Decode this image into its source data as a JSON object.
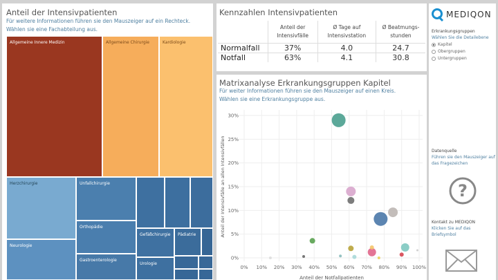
{
  "treemap": {
    "title": "Anteil der Intensivpatienten",
    "subtitle1": "Für weitere Informationen führen sie den Mauszeiger auf ein Rechteck.",
    "subtitle2": "Wählen sie eine Fachabteilung aus.",
    "cells": [
      "Allgemeine Innere Medizin",
      "Allgemeine Chirurgie",
      "Kardiologie",
      "Herzchirurgie",
      "Neurologie",
      "Unfallchirurgie",
      "Orthopädie",
      "Gastroenterologie",
      "Gefäßchirurgie",
      "Pädiatrie",
      "Urologie"
    ]
  },
  "kpi": {
    "title": "Kennzahlen Intensivpatienten",
    "headers": [
      "Anteil der Intensivfälle",
      "Ø Tage auf Intensivstation",
      "Ø Beatmungs-stunden"
    ],
    "rows": [
      {
        "label": "Normalfall",
        "values": [
          "37%",
          "4.0",
          "24.7"
        ]
      },
      {
        "label": "Notfall",
        "values": [
          "63%",
          "4.1",
          "30.8"
        ]
      }
    ]
  },
  "matrix": {
    "title": "Matrixanalyse Erkrankungsgruppen Kapitel",
    "subtitle1": "Für weiter Informationen führen sie den Mauszeiger auf einen Kreis.",
    "subtitle2": "Wählen sie eine Erkrankungsgruppe aus."
  },
  "chart_data": {
    "type": "scatter",
    "xlabel": "Anteil der Notfallpatienten",
    "ylabel": "Anteil der Intensivfälle an allen Intensivfällen",
    "xlim": [
      0,
      100
    ],
    "ylim": [
      0,
      30
    ],
    "grid": true,
    "xticks": [
      "0%",
      "10%",
      "20%",
      "30%",
      "40%",
      "50%",
      "60%",
      "70%",
      "80%",
      "90%",
      "100%"
    ],
    "yticks": [
      "0%",
      "5%",
      "10%",
      "15%",
      "20%",
      "25%",
      "30%"
    ],
    "points": [
      {
        "x": 54,
        "y": 29,
        "size": 10,
        "color": "#4a9e8e"
      },
      {
        "x": 61,
        "y": 14,
        "size": 7,
        "color": "#d8a6cc"
      },
      {
        "x": 61,
        "y": 12.1,
        "size": 5,
        "color": "#6f6f6f"
      },
      {
        "x": 78,
        "y": 8.2,
        "size": 10,
        "color": "#4a78a8"
      },
      {
        "x": 85,
        "y": 9.6,
        "size": 7,
        "color": "#bdb6b2"
      },
      {
        "x": 39,
        "y": 3.6,
        "size": 4,
        "color": "#59a14f"
      },
      {
        "x": 92,
        "y": 2.2,
        "size": 6,
        "color": "#7ec8c0"
      },
      {
        "x": 61,
        "y": 2,
        "size": 4,
        "color": "#b8a33a"
      },
      {
        "x": 73,
        "y": 1.2,
        "size": 6,
        "color": "#e0668a"
      },
      {
        "x": 73,
        "y": 2.2,
        "size": 3,
        "color": "#f4c56a"
      },
      {
        "x": 90,
        "y": 0.7,
        "size": 3,
        "color": "#d64550"
      },
      {
        "x": 34,
        "y": 0.3,
        "size": 2,
        "color": "#666"
      },
      {
        "x": 55,
        "y": 0.4,
        "size": 2,
        "color": "#8bb"
      },
      {
        "x": 63,
        "y": 0.2,
        "size": 3,
        "color": "#a8d8d8"
      },
      {
        "x": 77,
        "y": 0,
        "size": 2,
        "color": "#e8d25a"
      },
      {
        "x": 99,
        "y": 1.6,
        "size": 1.5,
        "color": "#ccc"
      },
      {
        "x": 15,
        "y": 0,
        "size": 2,
        "color": "#ddd"
      }
    ]
  },
  "side": {
    "logo": "MEDIQON",
    "filter_title": "Erkrankungsgruppen",
    "filter_sub": "Wählen Sie die Detailebene",
    "options": [
      "Kapitel",
      "Obergruppen",
      "Untergruppen"
    ],
    "selected": 0,
    "source_title": "Datenquelle",
    "source_sub": "Führen sie den Mauszeiger auf das Fragezeichen",
    "contact_title": "Kontakt zu MEDIQON",
    "contact_sub": "Klicken Sie auf das Briefsymbol"
  }
}
